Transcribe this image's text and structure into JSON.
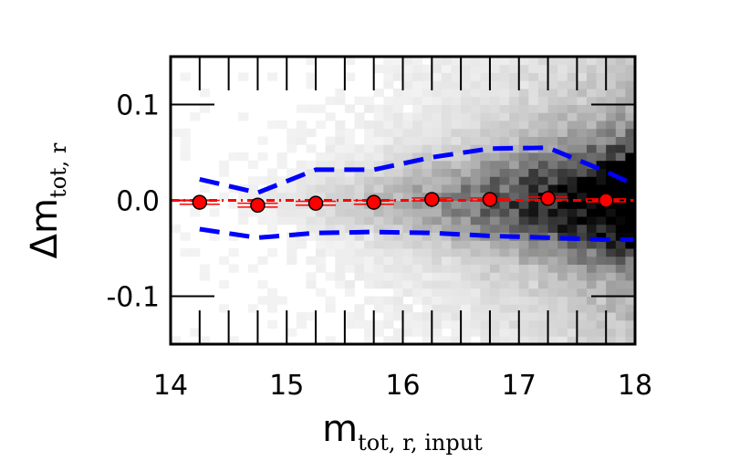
{
  "chart_data": {
    "type": "scatter",
    "xlabel": {
      "main": "m",
      "sub": "tot, r, input"
    },
    "ylabel": {
      "main": "Δm",
      "sub": "tot, r"
    },
    "xlim": [
      14,
      18
    ],
    "ylim": [
      -0.15,
      0.15
    ],
    "x_ticks": [
      14,
      15,
      16,
      17,
      18
    ],
    "x_tick_labels": [
      "14",
      "15",
      "16",
      "17",
      "18"
    ],
    "y_ticks": [
      -0.1,
      0.0,
      0.1
    ],
    "y_tick_labels": [
      "-0.1",
      "0.0",
      "0.1"
    ],
    "x_minor_step": 0.25,
    "grid": false,
    "background": "2D histogram density, grayscale, increasing toward faint magnitudes",
    "series": [
      {
        "kind": "median_points",
        "color": "#ff0000",
        "x": [
          14.25,
          14.75,
          15.25,
          15.75,
          16.25,
          16.75,
          17.25,
          17.75
        ],
        "y": [
          -0.002,
          -0.005,
          -0.003,
          -0.002,
          0.001,
          0.001,
          0.002,
          0.0
        ],
        "yerr": [
          0.002,
          0.002,
          0.002,
          0.002,
          0.0015,
          0.0015,
          0.0015,
          0.0015
        ]
      },
      {
        "kind": "upper_envelope",
        "color": "#0000ff",
        "style": "dashed",
        "x": [
          14.25,
          14.75,
          15.25,
          15.75,
          16.25,
          16.75,
          17.25,
          17.75,
          18.0
        ],
        "y": [
          0.022,
          0.008,
          0.032,
          0.032,
          0.045,
          0.054,
          0.055,
          0.03,
          0.016
        ]
      },
      {
        "kind": "lower_envelope",
        "color": "#0000ff",
        "style": "dashed",
        "x": [
          14.25,
          14.75,
          15.25,
          15.75,
          16.25,
          16.75,
          17.25,
          17.75,
          18.0
        ],
        "y": [
          -0.03,
          -0.039,
          -0.034,
          -0.033,
          -0.034,
          -0.037,
          -0.039,
          -0.041,
          -0.041
        ]
      },
      {
        "kind": "zero_reference",
        "color": "#ff0000",
        "style": "dash-dot",
        "y": 0.0
      }
    ]
  }
}
